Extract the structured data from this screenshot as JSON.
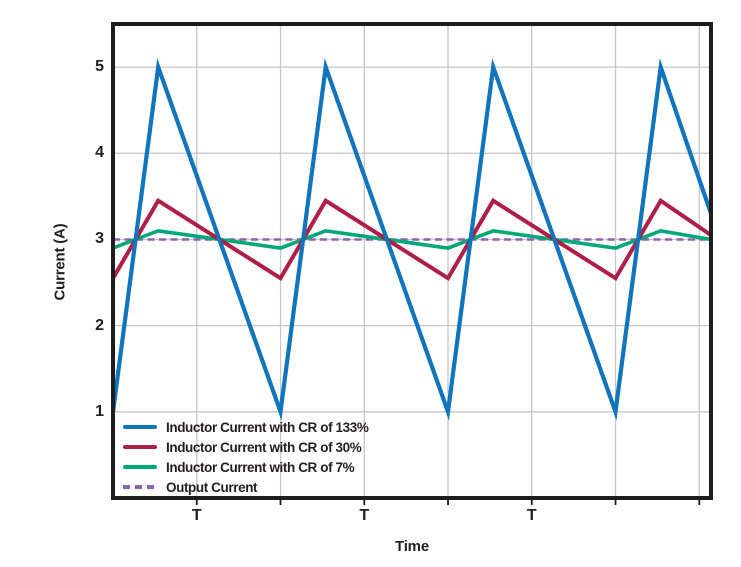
{
  "colors": {
    "blue": "#1274BB",
    "red": "#AE1E45",
    "green": "#00A878",
    "purple": "#8F62AE",
    "text": "#231F20",
    "grid": "#C6C6CB",
    "frame": "#1D1D1F",
    "background": "#FFFFFF"
  },
  "chart_data": {
    "type": "line",
    "title": "",
    "xlabel": "Time",
    "ylabel": "Current (A)",
    "x_unit": "switching periods (T)",
    "xlim": [
      0,
      3.57
    ],
    "ylim": [
      0,
      5.5
    ],
    "y_ticks": [
      1,
      2,
      3,
      4,
      5
    ],
    "x_gridlines": [
      0.5,
      1,
      1.5,
      2,
      2.5,
      3,
      3.5
    ],
    "x_tick_labels": [
      {
        "t": 0.5,
        "label": "T"
      },
      {
        "t": 1.5,
        "label": "T"
      },
      {
        "t": 2.5,
        "label": "T"
      }
    ],
    "grid": true,
    "legend_position": "lower left",
    "series": [
      {
        "name": "Inductor Current with CR of 133%",
        "color_key": "blue",
        "style": "solid",
        "width": 4.2,
        "x": [
          0,
          0.27,
          1.0,
          1.27,
          2.0,
          2.27,
          3.0,
          3.27,
          3.57
        ],
        "y": [
          1.0,
          5.0,
          1.0,
          5.0,
          1.0,
          5.0,
          1.0,
          5.0,
          3.3
        ]
      },
      {
        "name": "Inductor Current with CR of 30%",
        "color_key": "red",
        "style": "solid",
        "width": 4,
        "x": [
          0,
          0.27,
          1.0,
          1.27,
          2.0,
          2.27,
          3.0,
          3.27,
          3.57
        ],
        "y": [
          2.55,
          3.45,
          2.55,
          3.45,
          2.55,
          3.45,
          2.55,
          3.45,
          3.05
        ]
      },
      {
        "name": "Inductor Current with CR of 7%",
        "color_key": "green",
        "style": "solid",
        "width": 3.6,
        "x": [
          0,
          0.27,
          1.0,
          1.27,
          2.0,
          2.27,
          3.0,
          3.27,
          3.57
        ],
        "y": [
          2.9,
          3.1,
          2.9,
          3.1,
          2.9,
          3.1,
          2.9,
          3.1,
          3.0
        ]
      },
      {
        "name": "Output Current",
        "color_key": "purple",
        "style": "dashed",
        "width": 2.6,
        "x": [
          0,
          3.57
        ],
        "y": [
          3.0,
          3.0
        ]
      }
    ]
  }
}
